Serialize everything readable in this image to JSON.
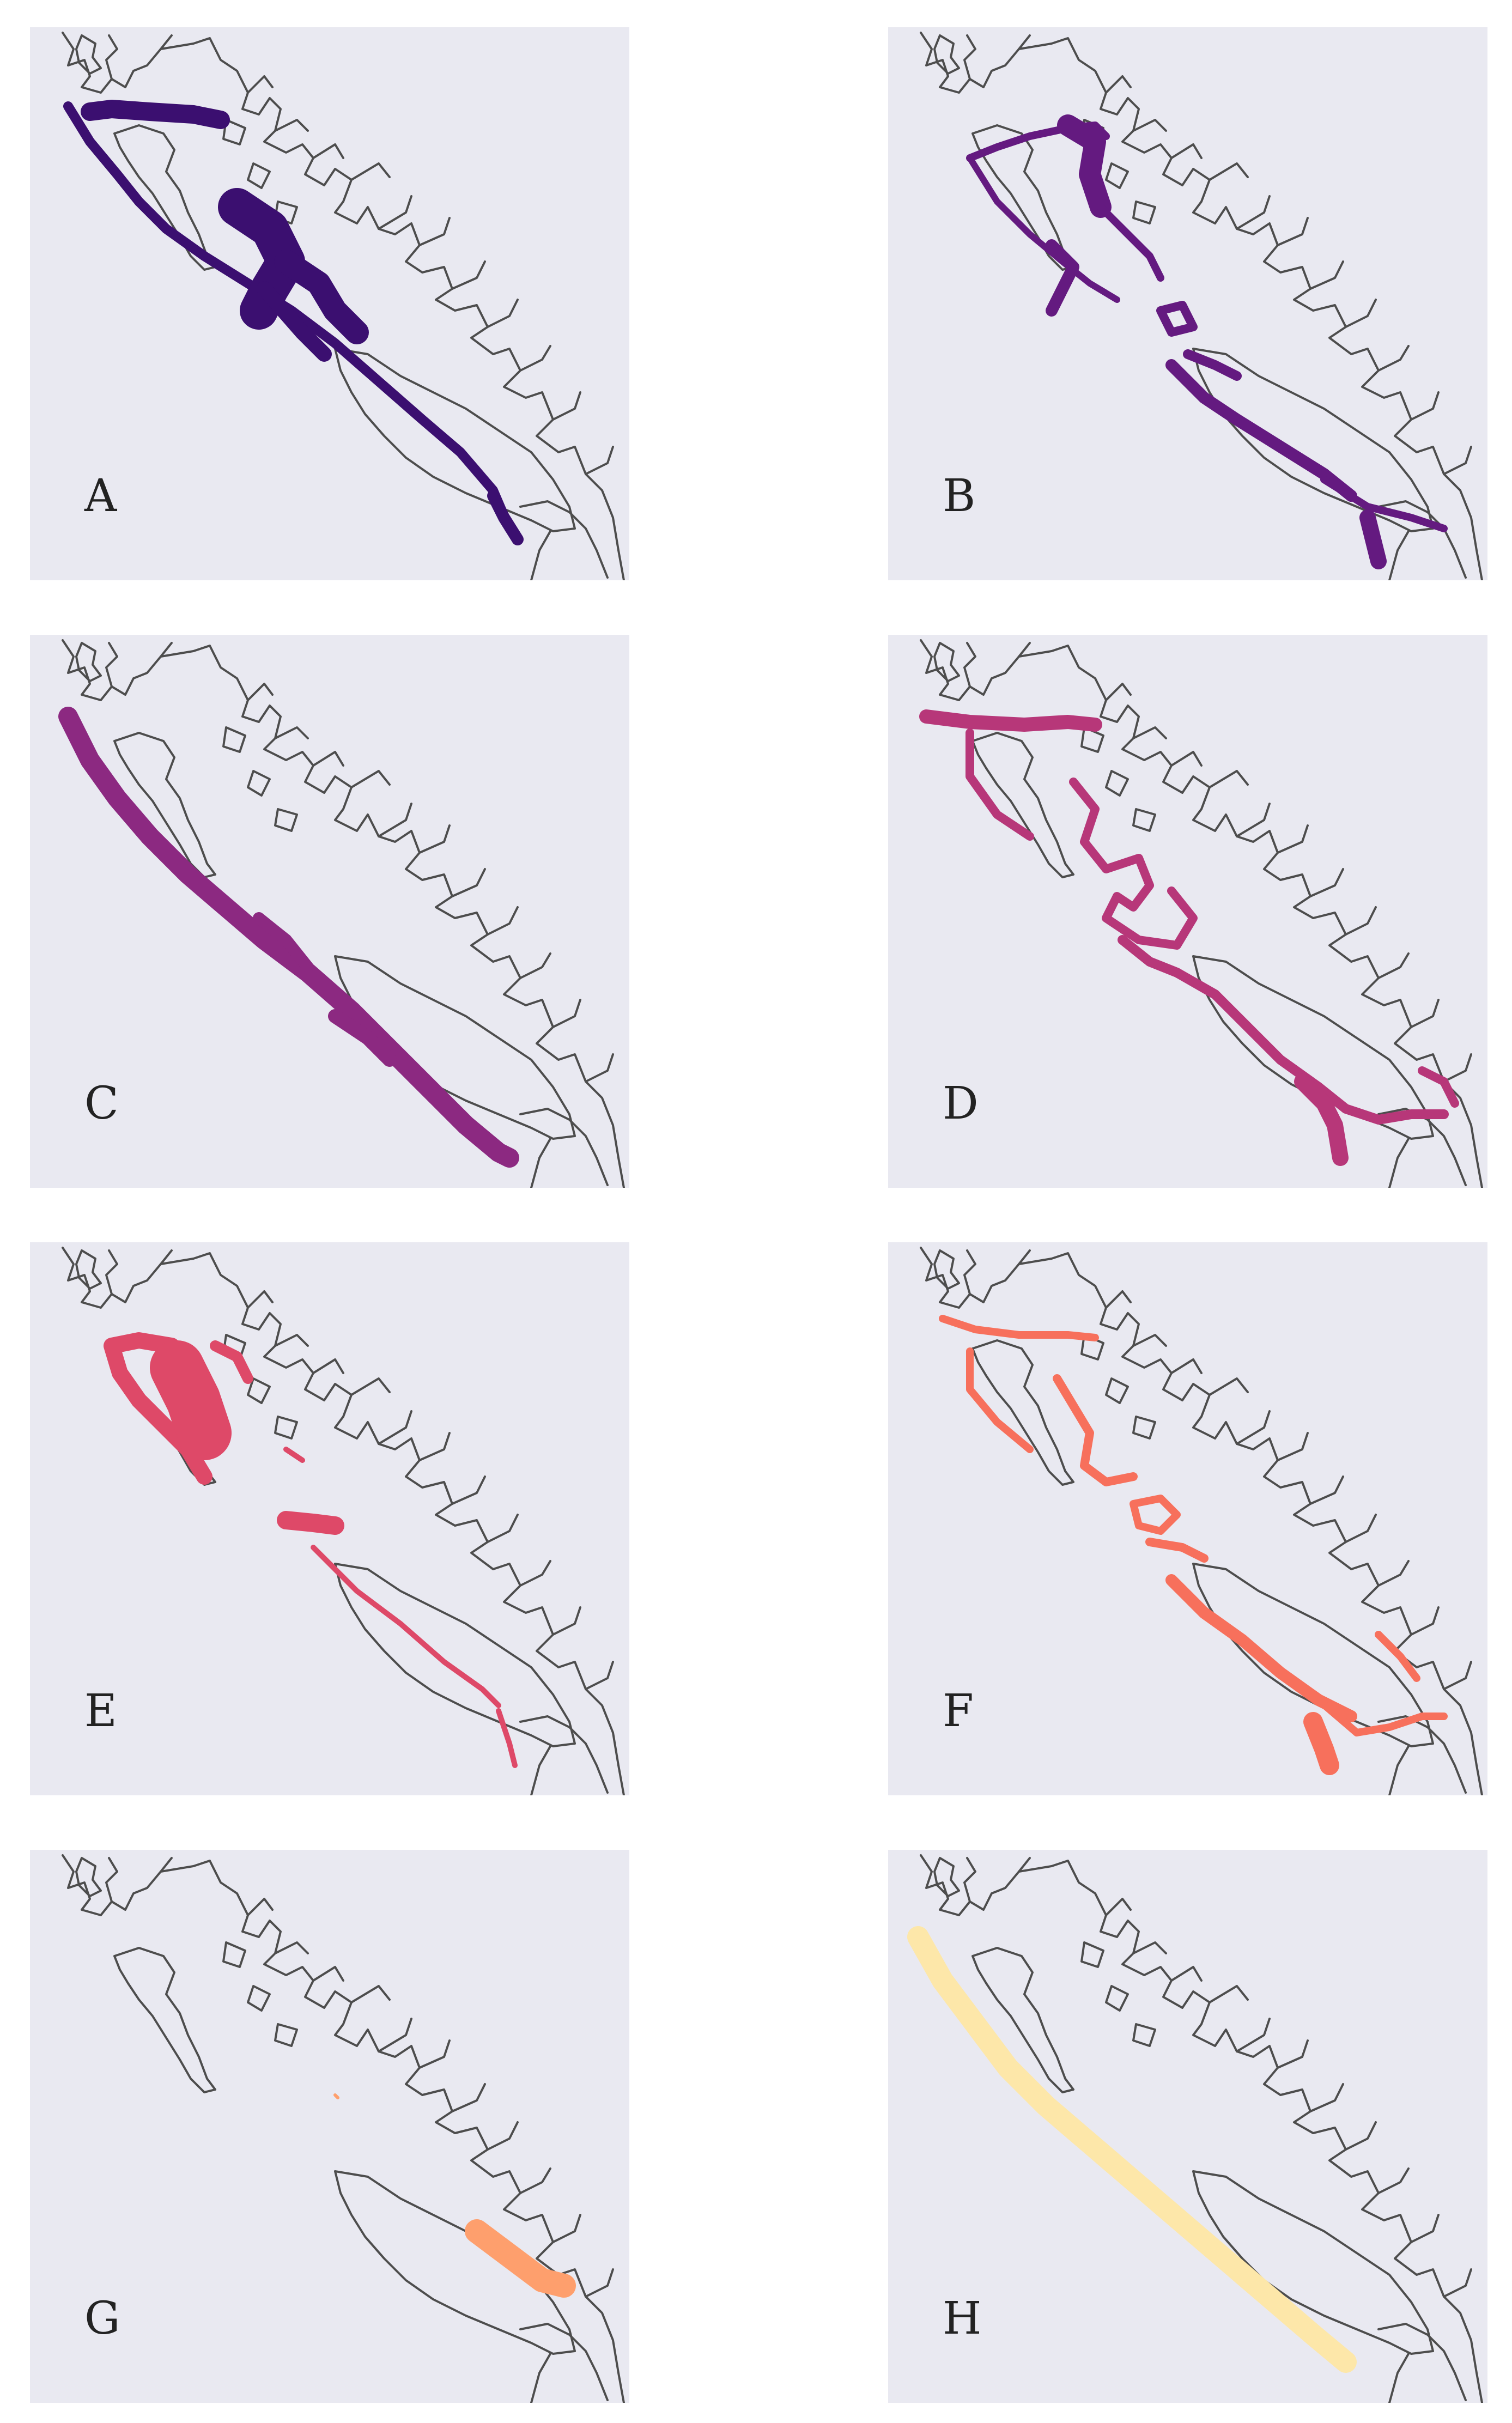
{
  "panels": [
    {
      "label": "A",
      "color": "#3b0f70"
    },
    {
      "label": "B",
      "color": "#641a80"
    },
    {
      "label": "C",
      "color": "#8c2981"
    },
    {
      "label": "D",
      "color": "#b73779"
    },
    {
      "label": "E",
      "color": "#de4968"
    },
    {
      "label": "F",
      "color": "#f7705c"
    },
    {
      "label": "G",
      "color": "#fe9f6d"
    },
    {
      "label": "H",
      "color": "#fde7a9"
    }
  ],
  "map_colors": {
    "background": "#e9e9f1",
    "coastline": "#4d4d4d"
  }
}
